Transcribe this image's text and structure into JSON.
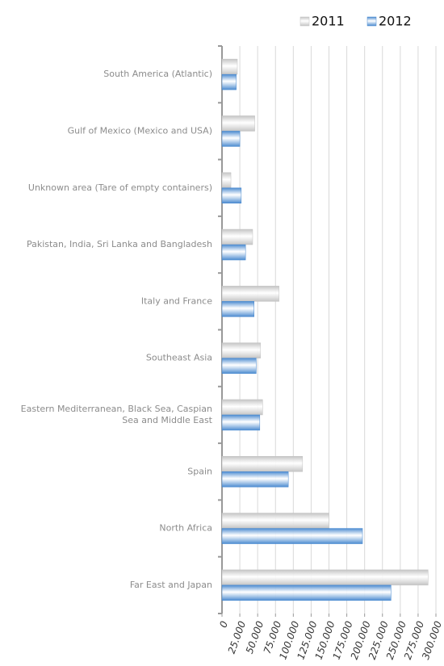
{
  "chart_data": {
    "type": "bar",
    "orientation": "horizontal",
    "categories": [
      "South America (Atlantic)",
      "Gulf of Mexico (Mexico and USA)",
      "Unknown area (Tare of empty containers)",
      "Pakistan, India, Sri Lanka and Bangladesh",
      "Italy and France",
      "Southeast Asia",
      "Eastern Mediterranean, Black Sea, Caspian Sea and Middle East",
      "Spain",
      "North Africa",
      "Far East and Japan"
    ],
    "series": [
      {
        "name": "2011",
        "color": "#c4c4c4",
        "values": [
          21500,
          46000,
          12500,
          43000,
          80000,
          54000,
          57000,
          113000,
          150000,
          289000
        ]
      },
      {
        "name": "2012",
        "color": "#4a8ad0",
        "values": [
          20000,
          25000,
          27000,
          33000,
          45000,
          48000,
          53000,
          93000,
          197000,
          237000
        ]
      }
    ],
    "xlim": [
      0,
      300000
    ],
    "xticks": [
      0,
      {
        "value": 25000,
        "label": "25.000"
      },
      {
        "value": 50000,
        "label": "50.000"
      },
      {
        "value": 75000,
        "label": "75.000"
      },
      {
        "value": 100000,
        "label": "100.000"
      },
      {
        "value": 125000,
        "label": "125.000"
      },
      {
        "value": 150000,
        "label": "150.000"
      },
      {
        "value": 175000,
        "label": "175.000"
      },
      {
        "value": 200000,
        "label": "200.000"
      },
      {
        "value": 225000,
        "label": "225.000"
      },
      {
        "value": 250000,
        "label": "250.000"
      },
      {
        "value": 275000,
        "label": "275.000"
      },
      {
        "value": 300000,
        "label": "300.000"
      }
    ],
    "grid": true,
    "legend": "top-right"
  }
}
